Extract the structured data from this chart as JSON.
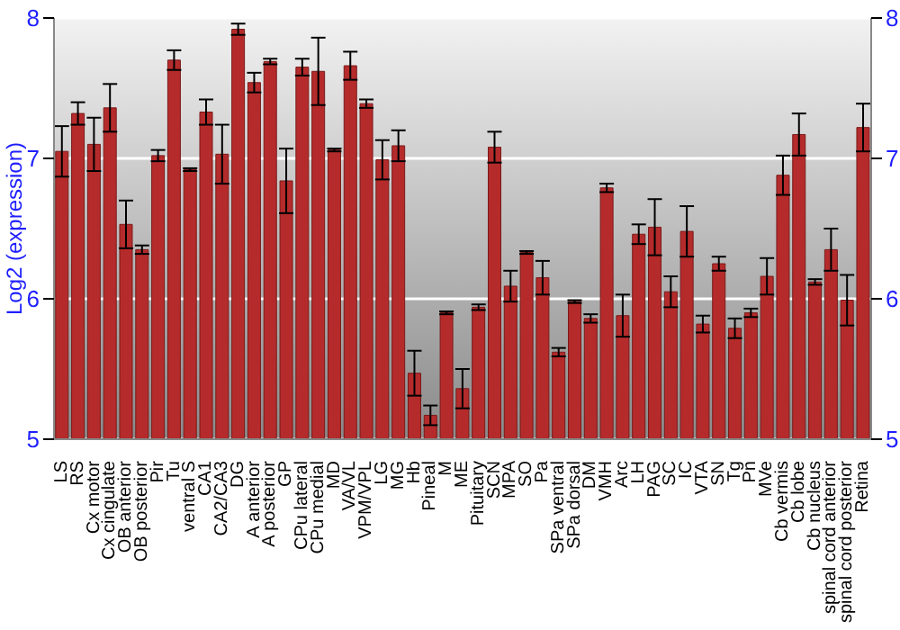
{
  "chart_data": {
    "type": "bar",
    "ylabel": "Log2 (expression)",
    "categories": [
      "LS",
      "RS",
      "Cx motor",
      "Cx cingulate",
      "OB anterior",
      "OB posterior",
      "Pir",
      "Tu",
      "ventral S",
      "CA1",
      "CA2/CA3",
      "DG",
      "A anterior",
      "A posterior",
      "GP",
      "CPu lateral",
      "CPu medial",
      "MD",
      "VA/VL",
      "VPM/VPL",
      "LG",
      "MG",
      "Hb",
      "Pineal",
      "M",
      "ME",
      "Pituitary",
      "SCN",
      "MPA",
      "SO",
      "Pa",
      "SPa ventral",
      "SPa dorsal",
      "DM",
      "VMH",
      "Arc",
      "LH",
      "PAG",
      "SC",
      "IC",
      "VTA",
      "SN",
      "Tg",
      "Pn",
      "MVe",
      "Cb vermis",
      "Cb lobe",
      "Cb nucleus",
      "spinal cord anterior",
      "spinal cord posterior",
      "Retina"
    ],
    "values": [
      7.05,
      7.32,
      7.1,
      7.36,
      6.53,
      6.35,
      7.02,
      7.7,
      6.92,
      7.33,
      7.03,
      7.92,
      7.54,
      7.69,
      6.84,
      7.65,
      7.62,
      7.06,
      7.66,
      7.39,
      6.99,
      7.09,
      5.47,
      5.17,
      5.9,
      5.36,
      5.94,
      7.08,
      6.09,
      6.33,
      6.15,
      5.62,
      5.98,
      5.86,
      6.79,
      5.88,
      6.46,
      6.51,
      6.05,
      6.48,
      5.82,
      6.25,
      5.79,
      5.9,
      6.16,
      6.88,
      7.17,
      6.12,
      6.35,
      5.99,
      7.22
    ],
    "errors": [
      0.18,
      0.08,
      0.19,
      0.17,
      0.17,
      0.03,
      0.04,
      0.07,
      0.01,
      0.09,
      0.21,
      0.04,
      0.07,
      0.02,
      0.23,
      0.06,
      0.24,
      0.01,
      0.1,
      0.03,
      0.14,
      0.11,
      0.16,
      0.07,
      0.01,
      0.14,
      0.02,
      0.11,
      0.11,
      0.01,
      0.12,
      0.03,
      0.01,
      0.03,
      0.03,
      0.15,
      0.07,
      0.2,
      0.11,
      0.18,
      0.06,
      0.05,
      0.07,
      0.03,
      0.13,
      0.14,
      0.15,
      0.02,
      0.15,
      0.18,
      0.17
    ],
    "color": "#b52b2b",
    "ylim": [
      5,
      8
    ],
    "yticks": [
      5,
      6,
      7,
      8
    ],
    "y2lim": [
      5,
      8
    ],
    "y2ticks": [
      5,
      6,
      7,
      8
    ],
    "grid": "y"
  }
}
